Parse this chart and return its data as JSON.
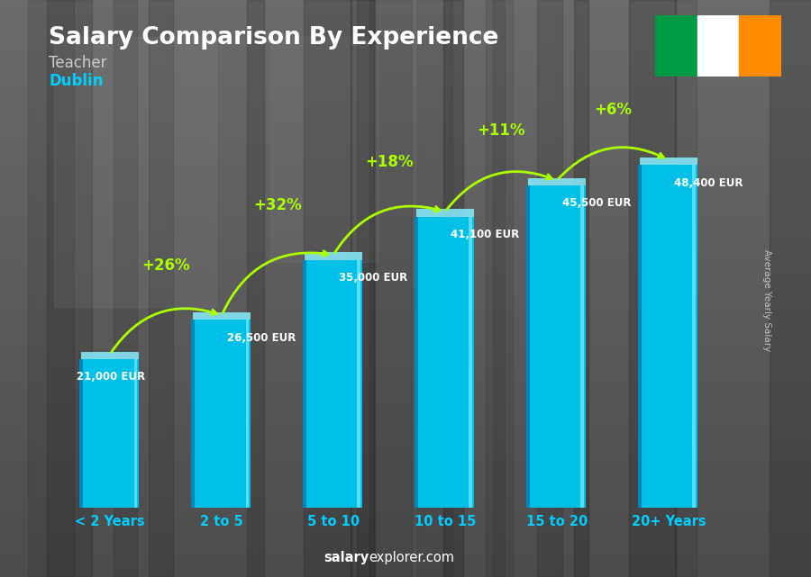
{
  "title": "Salary Comparison By Experience",
  "subtitle": "Teacher",
  "city": "Dublin",
  "ylabel": "Average Yearly Salary",
  "categories": [
    "< 2 Years",
    "2 to 5",
    "5 to 10",
    "10 to 15",
    "15 to 20",
    "20+ Years"
  ],
  "values": [
    21000,
    26500,
    35000,
    41100,
    45500,
    48400
  ],
  "bar_color_main": "#00c0e8",
  "bar_color_dark": "#0088bb",
  "bar_color_light": "#55ddff",
  "bar_color_top": "#88eeff",
  "pct_changes": [
    null,
    "+26%",
    "+32%",
    "+18%",
    "+11%",
    "+6%"
  ],
  "value_labels": [
    "21,000 EUR",
    "26,500 EUR",
    "35,000 EUR",
    "41,100 EUR",
    "45,500 EUR",
    "48,400 EUR"
  ],
  "title_color": "#ffffff",
  "subtitle_color": "#cccccc",
  "city_color": "#00cfff",
  "label_color": "#ffffff",
  "pct_color": "#aaff00",
  "tick_color": "#00cfff",
  "watermark": "salaryexplorer.com",
  "bg_color": "#555555",
  "flag_green": "#009a44",
  "flag_white": "#ffffff",
  "flag_orange": "#ff8c00",
  "ylim_max": 57000
}
